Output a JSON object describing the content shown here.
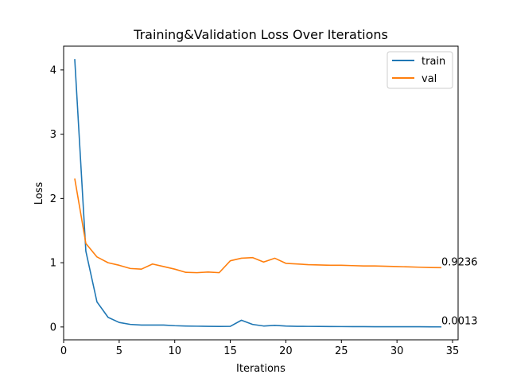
{
  "chart_data": {
    "type": "line",
    "title": "Training&Validation Loss Over Iterations",
    "xlabel": "Iterations",
    "ylabel": "Loss",
    "xlim": [
      0,
      35.5
    ],
    "ylim": [
      -0.2,
      4.37
    ],
    "xticks": [
      0,
      5,
      10,
      15,
      20,
      25,
      30,
      35
    ],
    "yticks": [
      0,
      1,
      2,
      3,
      4
    ],
    "grid": false,
    "legend": "top-right",
    "x": [
      1,
      2,
      3,
      4,
      5,
      6,
      7,
      8,
      9,
      10,
      11,
      12,
      13,
      14,
      15,
      16,
      17,
      18,
      19,
      20,
      21,
      22,
      23,
      24,
      25,
      26,
      27,
      28,
      29,
      30,
      31,
      32,
      33,
      34
    ],
    "series": [
      {
        "name": "train",
        "color": "#1f77b4",
        "values": [
          4.17,
          1.18,
          0.39,
          0.15,
          0.07,
          0.04,
          0.03,
          0.03,
          0.03,
          0.02,
          0.015,
          0.012,
          0.01,
          0.008,
          0.01,
          0.105,
          0.04,
          0.015,
          0.025,
          0.015,
          0.01,
          0.009,
          0.008,
          0.007,
          0.006,
          0.005,
          0.005,
          0.004,
          0.004,
          0.004,
          0.003,
          0.003,
          0.002,
          0.0013
        ],
        "end_label": "0.0013"
      },
      {
        "name": "val",
        "color": "#ff7f0e",
        "values": [
          2.31,
          1.3,
          1.09,
          1.0,
          0.96,
          0.91,
          0.9,
          0.98,
          0.94,
          0.9,
          0.85,
          0.845,
          0.855,
          0.845,
          1.03,
          1.07,
          1.08,
          1.01,
          1.07,
          0.99,
          0.98,
          0.97,
          0.965,
          0.96,
          0.96,
          0.955,
          0.95,
          0.95,
          0.945,
          0.94,
          0.935,
          0.93,
          0.925,
          0.9236
        ],
        "end_label": "0.9236"
      }
    ]
  }
}
